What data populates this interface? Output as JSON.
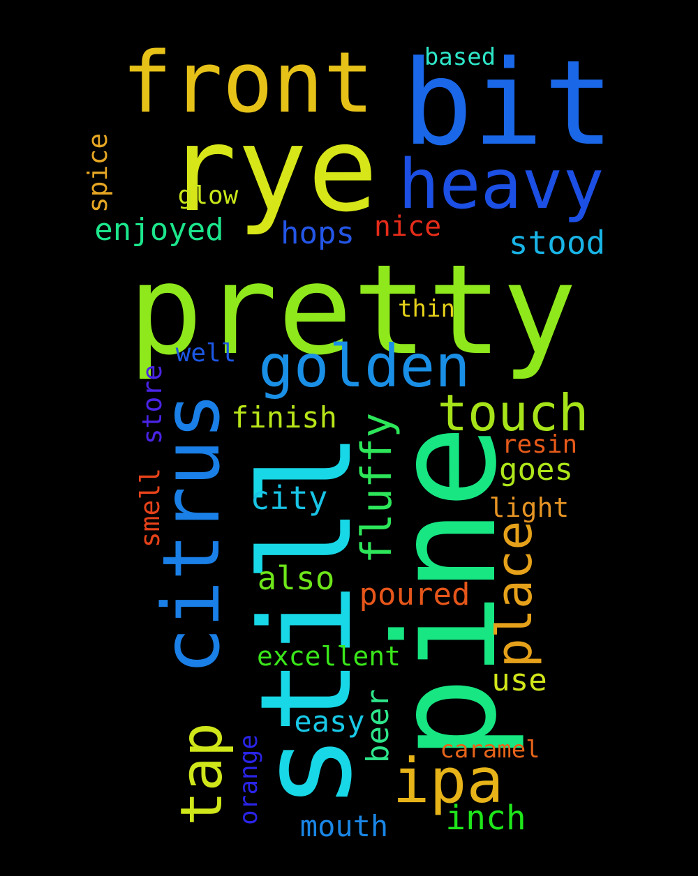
{
  "words": [
    {
      "text": "pretty",
      "color": "#8fe81c",
      "orientation": "horizontal"
    },
    {
      "text": "rye",
      "color": "#d6e619",
      "orientation": "horizontal"
    },
    {
      "text": "bit",
      "color": "#1a67e8",
      "orientation": "horizontal"
    },
    {
      "text": "front",
      "color": "#e6c219",
      "orientation": "horizontal"
    },
    {
      "text": "heavy",
      "color": "#1c4fe3",
      "orientation": "horizontal"
    },
    {
      "text": "still",
      "color": "#18d7e6",
      "orientation": "vertical"
    },
    {
      "text": "pine",
      "color": "#17e682",
      "orientation": "vertical"
    },
    {
      "text": "citrus",
      "color": "#1a7fe6",
      "orientation": "vertical"
    },
    {
      "text": "golden",
      "color": "#1a8fe6",
      "orientation": "horizontal"
    },
    {
      "text": "touch",
      "color": "#a6e319",
      "orientation": "horizontal"
    },
    {
      "text": "place",
      "color": "#e6a11a",
      "orientation": "vertical"
    },
    {
      "text": "fluffy",
      "color": "#2de65a",
      "orientation": "vertical"
    },
    {
      "text": "ipa",
      "color": "#e6b319",
      "orientation": "horizontal"
    },
    {
      "text": "tap",
      "color": "#cfe61a",
      "orientation": "vertical"
    },
    {
      "text": "based",
      "color": "#2ee6c8",
      "orientation": "horizontal"
    },
    {
      "text": "spice",
      "color": "#e6a624",
      "orientation": "vertical"
    },
    {
      "text": "glow",
      "color": "#c8e61a",
      "orientation": "horizontal"
    },
    {
      "text": "enjoyed",
      "color": "#1ce68c",
      "orientation": "horizontal"
    },
    {
      "text": "hops",
      "color": "#2456e6",
      "orientation": "horizontal"
    },
    {
      "text": "nice",
      "color": "#e62c1a",
      "orientation": "horizontal"
    },
    {
      "text": "stood",
      "color": "#19b4e6",
      "orientation": "horizontal"
    },
    {
      "text": "thin",
      "color": "#e6d21a",
      "orientation": "horizontal"
    },
    {
      "text": "well",
      "color": "#1c58e6",
      "orientation": "horizontal"
    },
    {
      "text": "store",
      "color": "#4a24e6",
      "orientation": "vertical"
    },
    {
      "text": "finish",
      "color": "#b8e619",
      "orientation": "horizontal"
    },
    {
      "text": "resin",
      "color": "#e65a1a",
      "orientation": "horizontal"
    },
    {
      "text": "goes",
      "color": "#aee61a",
      "orientation": "horizontal"
    },
    {
      "text": "smell",
      "color": "#e6421a",
      "orientation": "vertical"
    },
    {
      "text": "city",
      "color": "#19c4e6",
      "orientation": "horizontal"
    },
    {
      "text": "light",
      "color": "#e69424",
      "orientation": "horizontal"
    },
    {
      "text": "also",
      "color": "#6ee61a",
      "orientation": "horizontal"
    },
    {
      "text": "poured",
      "color": "#e6561a",
      "orientation": "horizontal"
    },
    {
      "text": "excellent",
      "color": "#3ae61a",
      "orientation": "horizontal"
    },
    {
      "text": "use",
      "color": "#d2e61a",
      "orientation": "horizontal"
    },
    {
      "text": "easy",
      "color": "#19c8e6",
      "orientation": "horizontal"
    },
    {
      "text": "beer",
      "color": "#2ee68a",
      "orientation": "vertical"
    },
    {
      "text": "orange",
      "color": "#2a24e6",
      "orientation": "vertical"
    },
    {
      "text": "caramel",
      "color": "#e6641a",
      "orientation": "horizontal"
    },
    {
      "text": "mouth",
      "color": "#1a86e6",
      "orientation": "horizontal"
    },
    {
      "text": "inch",
      "color": "#1ee61a",
      "orientation": "horizontal"
    }
  ]
}
